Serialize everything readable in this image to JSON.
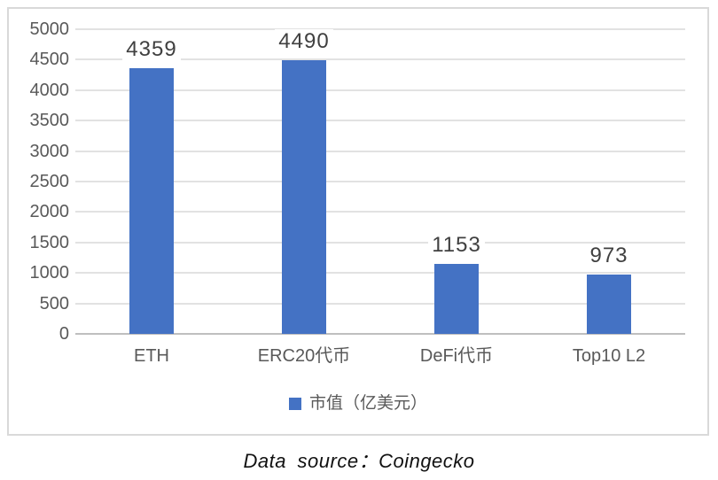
{
  "chart_data": {
    "type": "bar",
    "categories": [
      "ETH",
      "ERC20代币",
      "DeFi代币",
      "Top10 L2"
    ],
    "series": [
      {
        "name": "市值（亿美元）",
        "values": [
          4359,
          4490,
          1153,
          973
        ]
      }
    ],
    "title": "",
    "xlabel": "",
    "ylabel": "",
    "ylim": [
      0,
      5000
    ],
    "ytick_step": 500,
    "grid": true,
    "legend_position": "bottom",
    "colors": {
      "bar": "#4472C4",
      "axis_text": "#595959",
      "value_label": "#404040",
      "gridline": "#E2E2E2",
      "axis_line": "#BFBFBF",
      "frame_border": "#D9D9D9"
    }
  },
  "legend": {
    "label": "市值（亿美元）"
  },
  "caption": "Data source：Coingecko"
}
